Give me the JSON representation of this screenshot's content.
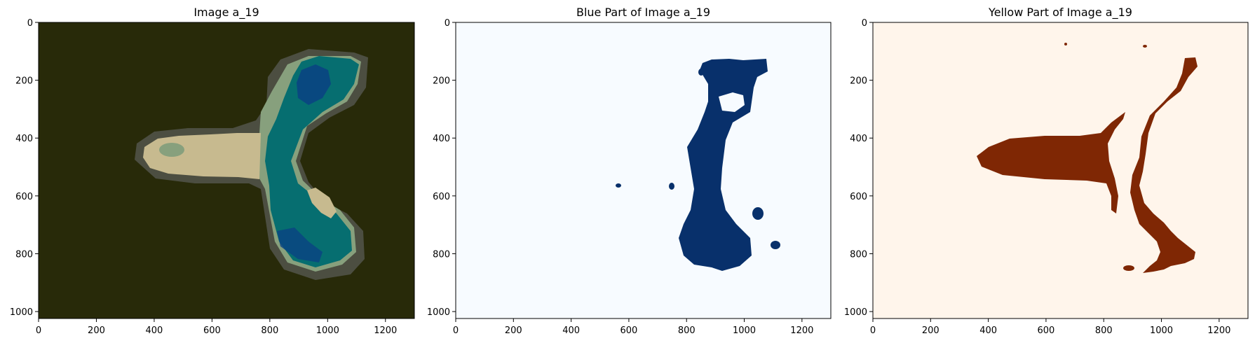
{
  "panels": [
    {
      "title": "Image a_19",
      "kind": "rgb",
      "colors": {
        "bg": "#282a09",
        "teal": "#066e70",
        "light": "#c7ba8f",
        "sage": "#87a07d",
        "navy": "#0a4283",
        "grey": "#505248"
      }
    },
    {
      "title": "Blue Part of Image a_19",
      "kind": "mask",
      "colors": {
        "bg": "#f7fbff",
        "fg": "#08306b"
      }
    },
    {
      "title": "Yellow Part of Image a_19",
      "kind": "mask",
      "colors": {
        "bg": "#fff5eb",
        "fg": "#7f2704"
      }
    }
  ],
  "axes": {
    "x_ticks": [
      "0",
      "200",
      "400",
      "600",
      "800",
      "1000",
      "1200"
    ],
    "y_ticks": [
      "0",
      "200",
      "400",
      "600",
      "800",
      "1000"
    ],
    "x_range": [
      0,
      1300
    ],
    "y_range": [
      1024,
      0
    ]
  }
}
